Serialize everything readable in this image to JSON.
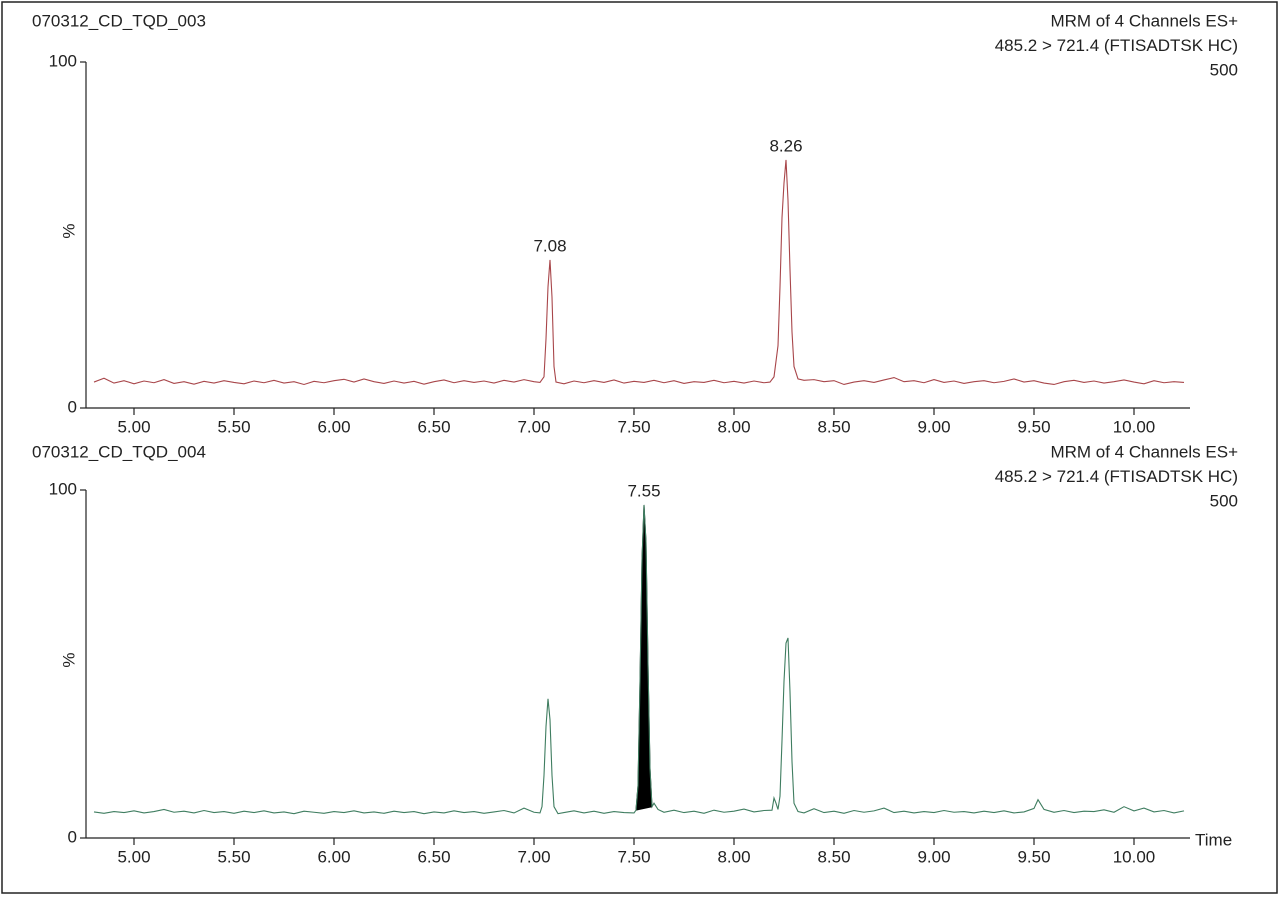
{
  "chart_data": [
    {
      "type": "line",
      "title": "070312_CD_TQD_003",
      "subtitle": [
        "MRM of 4 Channels ES+",
        "485.2 > 721.4 (FTISADTSK HC)",
        "500"
      ],
      "text_color": "#d03a3a",
      "color": "#a8464a",
      "ylabel": "%",
      "xlim": [
        4.76,
        10.28
      ],
      "ylim": [
        0,
        100
      ],
      "yticks": [
        0,
        100
      ],
      "xticks": [
        {
          "value": 5,
          "label": "5.00"
        },
        {
          "value": 5.5,
          "label": "5.50"
        },
        {
          "value": 6,
          "label": "6.00"
        },
        {
          "value": 6.5,
          "label": "6.50"
        },
        {
          "value": 7,
          "label": "7.00"
        },
        {
          "value": 7.5,
          "label": "7.50"
        },
        {
          "value": 8,
          "label": "8.00"
        },
        {
          "value": 8.5,
          "label": "8.50"
        },
        {
          "value": 9,
          "label": "9.00"
        },
        {
          "value": 9.5,
          "label": "9.50"
        },
        {
          "value": 10,
          "label": "10.00"
        }
      ],
      "annotations": [
        {
          "x": 7.08
        },
        {
          "x": 8.26
        }
      ],
      "x": [
        4.8,
        4.85,
        4.9,
        4.95,
        5,
        5.05,
        5.1,
        5.15,
        5.2,
        5.25,
        5.3,
        5.35,
        5.4,
        5.45,
        5.5,
        5.55,
        5.6,
        5.65,
        5.7,
        5.75,
        5.8,
        5.85,
        5.9,
        5.95,
        6,
        6.05,
        6.1,
        6.15,
        6.2,
        6.25,
        6.3,
        6.35,
        6.4,
        6.45,
        6.5,
        6.55,
        6.6,
        6.65,
        6.7,
        6.75,
        6.8,
        6.85,
        6.9,
        6.95,
        7,
        7.03,
        7.05,
        7.06,
        7.07,
        7.08,
        7.09,
        7.1,
        7.11,
        7.15,
        7.2,
        7.25,
        7.3,
        7.35,
        7.4,
        7.45,
        7.5,
        7.55,
        7.6,
        7.65,
        7.7,
        7.75,
        7.8,
        7.85,
        7.9,
        7.95,
        8,
        8.05,
        8.1,
        8.15,
        8.18,
        8.2,
        8.22,
        8.23,
        8.24,
        8.25,
        8.26,
        8.27,
        8.28,
        8.29,
        8.3,
        8.32,
        8.35,
        8.4,
        8.45,
        8.5,
        8.55,
        8.6,
        8.65,
        8.7,
        8.75,
        8.8,
        8.85,
        8.9,
        8.95,
        9,
        9.05,
        9.1,
        9.15,
        9.2,
        9.25,
        9.3,
        9.35,
        9.4,
        9.45,
        9.5,
        9.55,
        9.6,
        9.65,
        9.7,
        9.75,
        9.8,
        9.85,
        9.9,
        9.95,
        10,
        10.05,
        10.1,
        10.15,
        10.2,
        10.25
      ],
      "values": [
        7.5,
        8.6,
        7.2,
        7.9,
        7,
        7.8,
        7.3,
        8.2,
        7.1,
        7.6,
        6.9,
        7.7,
        7.2,
        7.9,
        7.4,
        7,
        7.8,
        7.3,
        8,
        7.2,
        7.6,
        6.8,
        7.7,
        7.3,
        7.9,
        8.3,
        7.5,
        8.4,
        7.6,
        7.1,
        7.8,
        7.2,
        7.7,
        6.9,
        7.6,
        8.1,
        7.3,
        7.9,
        7.4,
        7.8,
        7.2,
        8,
        7.5,
        8.2,
        7.6,
        7.4,
        9,
        20,
        35,
        42.8,
        32,
        12,
        7.5,
        7,
        7.8,
        7.3,
        7.9,
        7.4,
        8.1,
        7.2,
        7.7,
        7.4,
        8,
        7.3,
        7.9,
        7.1,
        7.6,
        7.4,
        8,
        7.3,
        7.7,
        7.2,
        7.8,
        7.3,
        7.5,
        9,
        18,
        35,
        55,
        65,
        71.7,
        60,
        40,
        22,
        12,
        8.4,
        8,
        8.2,
        7.6,
        7.9,
        6.8,
        7.5,
        7.9,
        7.4,
        8.1,
        8.8,
        7.6,
        7.9,
        7.3,
        8.2,
        7.4,
        7.8,
        7.1,
        7.6,
        7.9,
        7.3,
        7.7,
        8.4,
        7.5,
        7.9,
        7.2,
        6.8,
        7.6,
        8,
        7.4,
        7.8,
        7.2,
        7.6,
        8.1,
        7.5,
        7,
        7.9,
        7.3,
        7.6,
        7.4
      ]
    },
    {
      "type": "line",
      "title": "070312_CD_TQD_004",
      "subtitle": [
        "MRM of 4 Channels ES+",
        "485.2 > 721.4 (FTISADTSK HC)",
        "500"
      ],
      "text_color": "#2f8a52",
      "color": "#3f7d60",
      "ylabel": "%",
      "xlabel": "Time",
      "xlim": [
        4.76,
        10.28
      ],
      "ylim": [
        0,
        100
      ],
      "yticks": [
        0,
        100
      ],
      "xticks": [
        {
          "value": 5,
          "label": "5.00"
        },
        {
          "value": 5.5,
          "label": "5.50"
        },
        {
          "value": 6,
          "label": "6.00"
        },
        {
          "value": 6.5,
          "label": "6.50"
        },
        {
          "value": 7,
          "label": "7.00"
        },
        {
          "value": 7.5,
          "label": "7.50"
        },
        {
          "value": 8,
          "label": "8.00"
        },
        {
          "value": 8.5,
          "label": "8.50"
        },
        {
          "value": 9,
          "label": "9.00"
        },
        {
          "value": 9.5,
          "label": "9.50"
        },
        {
          "value": 10,
          "label": "10.00"
        }
      ],
      "annotations": [
        {
          "x": 7.55
        }
      ],
      "shaded_range": [
        7.51,
        7.59
      ],
      "shade_color": "#000000",
      "x": [
        4.8,
        4.85,
        4.9,
        4.95,
        5,
        5.05,
        5.1,
        5.15,
        5.2,
        5.25,
        5.3,
        5.35,
        5.4,
        5.45,
        5.5,
        5.55,
        5.6,
        5.65,
        5.7,
        5.75,
        5.8,
        5.85,
        5.9,
        5.95,
        6,
        6.05,
        6.1,
        6.15,
        6.2,
        6.25,
        6.3,
        6.35,
        6.4,
        6.45,
        6.5,
        6.55,
        6.6,
        6.65,
        6.7,
        6.75,
        6.8,
        6.85,
        6.9,
        6.95,
        7,
        7.03,
        7.04,
        7.05,
        7.06,
        7.07,
        7.08,
        7.09,
        7.1,
        7.12,
        7.15,
        7.2,
        7.25,
        7.3,
        7.35,
        7.4,
        7.45,
        7.5,
        7.51,
        7.52,
        7.53,
        7.54,
        7.55,
        7.56,
        7.57,
        7.58,
        7.59,
        7.6,
        7.62,
        7.65,
        7.7,
        7.75,
        7.8,
        7.85,
        7.9,
        7.95,
        8,
        8.05,
        8.1,
        8.15,
        8.19,
        8.2,
        8.21,
        8.22,
        8.23,
        8.24,
        8.25,
        8.26,
        8.27,
        8.28,
        8.29,
        8.3,
        8.32,
        8.35,
        8.4,
        8.45,
        8.5,
        8.55,
        8.6,
        8.65,
        8.7,
        8.75,
        8.8,
        8.85,
        8.9,
        8.95,
        9,
        9.05,
        9.1,
        9.15,
        9.2,
        9.25,
        9.3,
        9.35,
        9.4,
        9.45,
        9.5,
        9.52,
        9.55,
        9.6,
        9.65,
        9.7,
        9.75,
        9.8,
        9.85,
        9.9,
        9.95,
        10,
        10.05,
        10.1,
        10.15,
        10.2,
        10.25
      ],
      "values": [
        7.5,
        7.1,
        7.6,
        7.3,
        7.8,
        7.2,
        7.6,
        8.2,
        7.4,
        7.7,
        7.2,
        7.9,
        7.3,
        7.6,
        7.1,
        7.7,
        7.3,
        7.8,
        7.2,
        7.5,
        7,
        7.7,
        7.4,
        7.1,
        7.6,
        7.3,
        7.8,
        7.2,
        7.5,
        7.1,
        7.7,
        7.3,
        7.6,
        7,
        7.5,
        7.2,
        7.8,
        7.3,
        7.6,
        7.1,
        7.5,
        7.9,
        7.2,
        8.6,
        7.4,
        7.2,
        9,
        18,
        32,
        40,
        34,
        18,
        9,
        7,
        7.3,
        7.8,
        7.2,
        7.7,
        7.1,
        7.6,
        7.3,
        7.2,
        8,
        15,
        45,
        80,
        95.7,
        85,
        50,
        20,
        9,
        10,
        8.2,
        7.4,
        8,
        7.3,
        7.7,
        7.1,
        8,
        7.4,
        7.7,
        8.3,
        7.5,
        7.9,
        8,
        11.5,
        10,
        8.2,
        12,
        28,
        45,
        56,
        57.5,
        42,
        22,
        10,
        7.6,
        7.2,
        8.4,
        7.3,
        7.7,
        7.1,
        7.9,
        7.4,
        7.8,
        8.6,
        7.3,
        7.7,
        7.2,
        7.6,
        7.3,
        7.9,
        7.4,
        7.6,
        7.2,
        7.7,
        7.3,
        7.8,
        7.2,
        7.5,
        8.5,
        11,
        8.2,
        7.4,
        7.9,
        7.3,
        7.7,
        7.6,
        8.1,
        7.4,
        9,
        7.8,
        8.6,
        7.5,
        7.9,
        7.2,
        7.8
      ]
    }
  ]
}
